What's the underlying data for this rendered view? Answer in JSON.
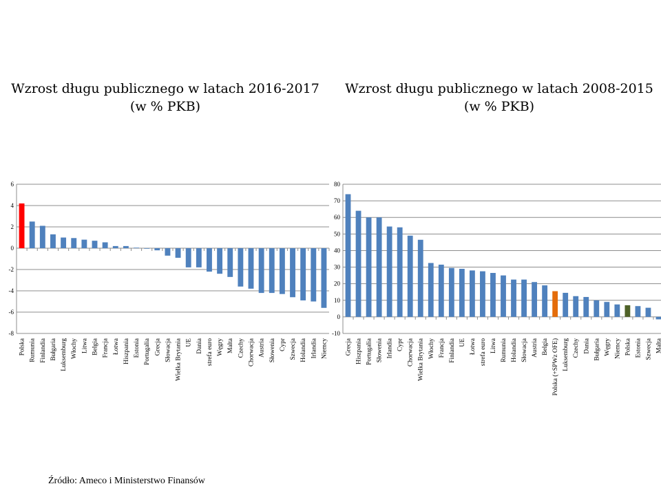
{
  "left": {
    "title_line1": "Wzrost długu publicznego w latach 2016-2017",
    "title_line2": "(w % PKB)"
  },
  "right": {
    "title_line1": "Wzrost długu publicznego w latach 2008-2015",
    "title_line2": "(w % PKB)"
  },
  "source": "Źródło: Ameco i Ministerstwo Finansów",
  "colors": {
    "bar": "#4f81bd",
    "highlight_left": "#ff0000",
    "highlight_right_orange": "#e46c0a",
    "highlight_right_green": "#4f6228",
    "grid": "#8c8c8c"
  },
  "chart_data": [
    {
      "type": "bar",
      "title": "Wzrost długu publicznego w latach 2016-2017 (w % PKB)",
      "ylim": [
        -8,
        6
      ],
      "yticks": [
        -8,
        -6,
        -4,
        -2,
        0,
        2,
        4,
        6
      ],
      "grid": true,
      "categories": [
        "Polska",
        "Rumunia",
        "Finlandia",
        "Bułgaria",
        "Luksemburg",
        "Włochy",
        "Litwa",
        "Belgia",
        "Francja",
        "Łotwa",
        "Hiszpania",
        "Estonia",
        "Portugalia",
        "Grecja",
        "Słowacja",
        "Wielka Brytania",
        "UE",
        "Dania",
        "strefa euro",
        "Węgry",
        "Malta",
        "Czechy",
        "Chorwacja",
        "Austria",
        "Słowenia",
        "Cypr",
        "Szwecja",
        "Holandia",
        "Irlandia",
        "Niemcy"
      ],
      "values": [
        4.2,
        2.5,
        2.1,
        1.3,
        1.0,
        0.95,
        0.8,
        0.7,
        0.55,
        0.2,
        0.2,
        0.05,
        -0.05,
        -0.2,
        -0.7,
        -0.9,
        -1.8,
        -1.8,
        -2.2,
        -2.4,
        -2.7,
        -3.6,
        -3.8,
        -4.2,
        -4.2,
        -4.3,
        -4.6,
        -4.9,
        -5.0,
        -5.6
      ],
      "highlight": [
        0
      ]
    },
    {
      "type": "bar",
      "title": "Wzrost długu publicznego w latach 2008-2015 (w % PKB)",
      "ylim": [
        -10,
        80
      ],
      "yticks": [
        -10,
        0,
        10,
        20,
        30,
        40,
        50,
        60,
        70,
        80
      ],
      "grid": true,
      "categories": [
        "Grecja",
        "Hiszpania",
        "Portugalia",
        "Słowenia",
        "Irlandia",
        "Cypr",
        "Chorwacja",
        "Wielka Brytania",
        "Włochy",
        "Francja",
        "Finlandia",
        "UE",
        "Łotwa",
        "strefa euro",
        "Litwa",
        "Rumunia",
        "Holandia",
        "Słowacja",
        "Austria",
        "Belgia",
        "Polska (+SPWz OFE)",
        "Luksemburg",
        "Czechy",
        "Dania",
        "Bułgaria",
        "Węgry",
        "Niemcy",
        "Polska",
        "Estonia",
        "Szwecja",
        "Malta"
      ],
      "values": [
        74,
        64,
        60,
        60,
        54.5,
        54,
        49,
        46.5,
        32.5,
        31.5,
        29.5,
        29,
        28,
        27.5,
        26.5,
        25,
        22.5,
        22.5,
        21,
        19,
        15.5,
        14.5,
        12.5,
        12,
        10,
        9,
        7.5,
        7,
        6.5,
        5.5,
        -1.5
      ],
      "highlight": [
        20,
        27
      ]
    }
  ]
}
